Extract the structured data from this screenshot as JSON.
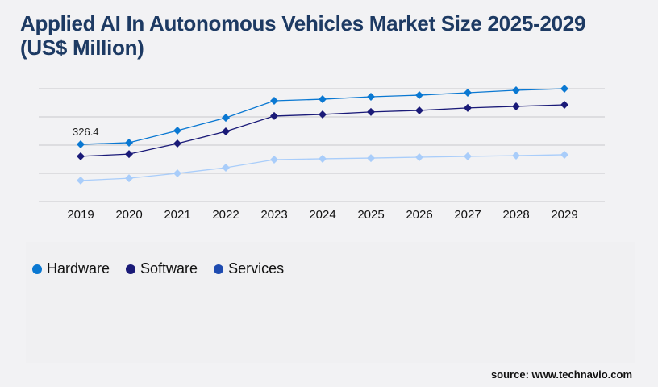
{
  "chart_data": {
    "type": "line",
    "title": "Applied AI In Autonomous Vehicles Market Size 2025-2029 (US$ Million)",
    "x": [
      "2019",
      "2020",
      "2021",
      "2022",
      "2023",
      "2024",
      "2025",
      "2026",
      "2027",
      "2028",
      "2029"
    ],
    "ylim": [
      0,
      644
    ],
    "grid": true,
    "legend_position": "bottom-left",
    "series": [
      {
        "name": "Hardware",
        "color": "#0a78d2",
        "legend_color": "#0a78d2",
        "values": [
          326.4,
          336,
          405,
          478,
          575,
          584,
          598,
          607,
          621,
          635,
          644
        ]
      },
      {
        "name": "Software",
        "color": "#1a1a78",
        "legend_color": "#1a1a78",
        "values": [
          258,
          271,
          331,
          400,
          488,
          497,
          511,
          520,
          534,
          543,
          552
        ]
      },
      {
        "name": "Services",
        "color": "#a9cdfa",
        "legend_color": "#1e4bb0",
        "values": [
          120,
          133,
          161,
          193,
          239,
          244,
          248,
          253,
          258,
          262,
          267
        ]
      }
    ],
    "annotations": [
      {
        "series": "Hardware",
        "x": "2019",
        "text": "326.4"
      }
    ]
  },
  "source": "source: www.technavio.com"
}
